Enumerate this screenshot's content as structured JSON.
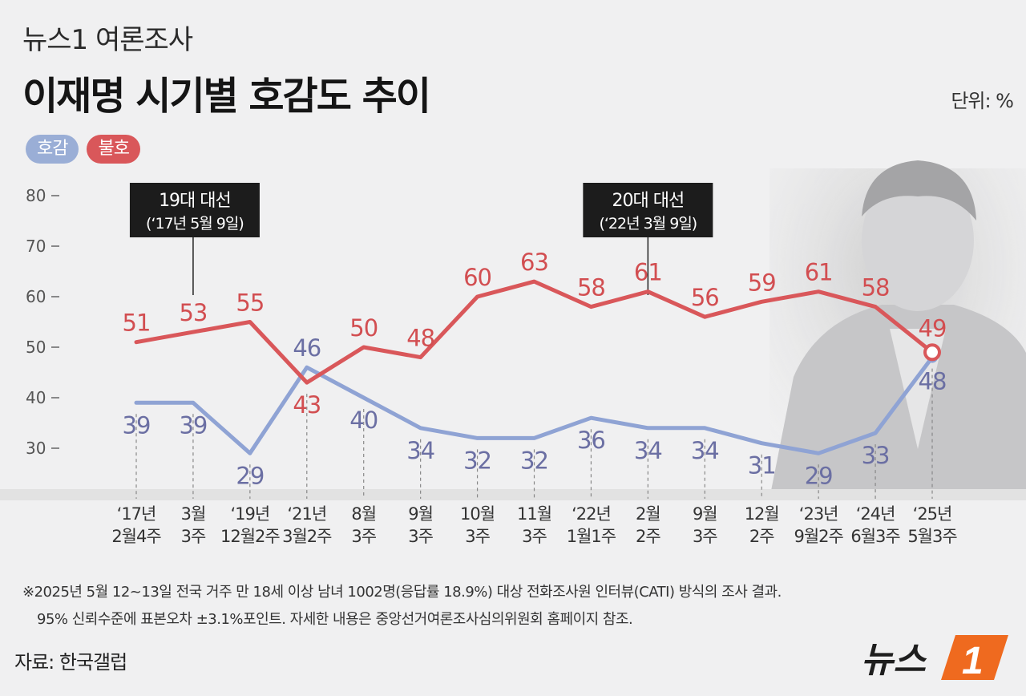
{
  "header": {
    "kicker": "뉴스1 여론조사",
    "title": "이재명 시기별 호감도 추이",
    "unit": "단위: %"
  },
  "legend": [
    {
      "label": "호감",
      "color": "#9aaed6"
    },
    {
      "label": "불호",
      "color": "#d9575a"
    }
  ],
  "chart_data": {
    "type": "line",
    "x": [
      [
        "‘17년",
        "2월4주"
      ],
      [
        "3월",
        "3주"
      ],
      [
        "‘19년",
        "12월2주"
      ],
      [
        "‘21년",
        "3월2주"
      ],
      [
        "8월",
        "3주"
      ],
      [
        "9월",
        "3주"
      ],
      [
        "10월",
        "3주"
      ],
      [
        "11월",
        "3주"
      ],
      [
        "‘22년",
        "1월1주"
      ],
      [
        "2월",
        "2주"
      ],
      [
        "9월",
        "3주"
      ],
      [
        "12월",
        "2주"
      ],
      [
        "‘23년",
        "9월2주"
      ],
      [
        "‘24년",
        "6월3주"
      ],
      [
        "‘25년",
        "5월3주"
      ]
    ],
    "series": [
      {
        "name": "호감",
        "color": "#8fa3d4",
        "label_color": "#6b6fa3",
        "values": [
          39,
          39,
          29,
          46,
          40,
          34,
          32,
          32,
          36,
          34,
          34,
          31,
          29,
          33,
          48
        ]
      },
      {
        "name": "불호",
        "color": "#d9575a",
        "label_color": "#d24e51",
        "values": [
          51,
          53,
          55,
          43,
          50,
          48,
          60,
          63,
          58,
          61,
          56,
          59,
          61,
          58,
          49
        ]
      }
    ],
    "yticks": [
      30,
      40,
      50,
      60,
      70,
      80
    ],
    "ylim": [
      22,
      84
    ],
    "annotations": [
      {
        "lines": [
          "19대 대선",
          "(‘17년 5월 9일)"
        ],
        "at_index": 1
      },
      {
        "lines": [
          "20대 대선",
          "(‘22년 3월 9일)"
        ],
        "at_index": 9
      }
    ]
  },
  "notes": {
    "line1": "※2025년 5월 12~13일 전국 거주 만 18세 이상 남녀 1002명(응답률 18.9%) 대상 전화조사원 인터뷰(CATI) 방식의 조사 결과.",
    "line2": "95% 신뢰수준에 표본오차 ±3.1%포인트. 자세한 내용은 중앙선거여론조사심의위원회 홈페이지 참조."
  },
  "source": "자료: 한국갤럽",
  "brand": {
    "name": "뉴스",
    "mark": "1",
    "accent": "#ef6a1f"
  }
}
